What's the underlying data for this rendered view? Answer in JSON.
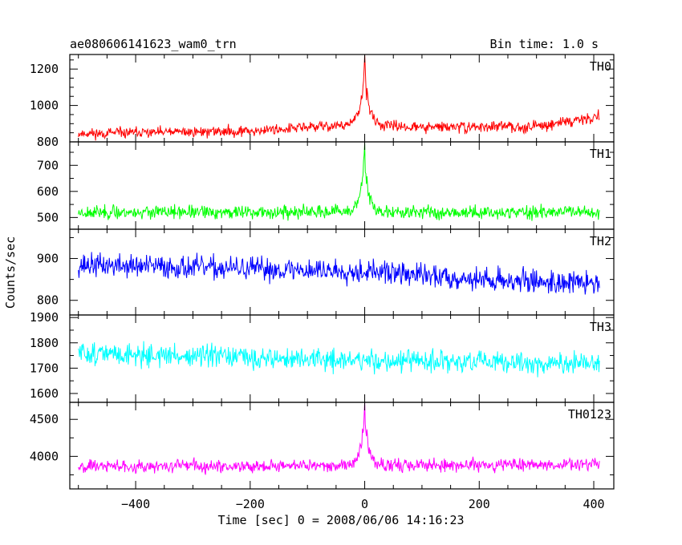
{
  "header": {
    "title": "ae080606141623_wam0_trn",
    "bin_time": "Bin time: 1.0 s"
  },
  "chart_data": {
    "type": "line",
    "xlabel": "Time [sec] 0 = 2008/06/06 14:16:23",
    "ylabel": "Counts/sec",
    "xlim": [
      -515,
      435
    ],
    "x_ticks": [
      -400,
      -200,
      0,
      200,
      400
    ],
    "x_tick_labels": [
      "−400",
      "−200",
      "0",
      "200",
      "400"
    ],
    "panels": [
      {
        "name": "TH0",
        "color": "#ff0000",
        "ylim": [
          800,
          1280
        ],
        "y_ticks": [
          800,
          1000,
          1200
        ],
        "y_minor": [
          850,
          900,
          950,
          1050,
          1100,
          1150,
          1250
        ],
        "y_tick_labels": [
          "800",
          "1000",
          "1200"
        ],
        "baseline": [
          [
            -500,
            845
          ],
          [
            -200,
            860
          ],
          [
            -100,
            880
          ],
          [
            -10,
            895
          ],
          [
            100,
            880
          ],
          [
            300,
            885
          ],
          [
            410,
            940
          ]
        ],
        "noise": 25,
        "burst_peak": 1280,
        "burst_width": 7,
        "seed": 11
      },
      {
        "name": "TH1",
        "color": "#00ff00",
        "ylim": [
          455,
          790
        ],
        "y_ticks": [
          500,
          600,
          700
        ],
        "y_minor": [
          550,
          650,
          750
        ],
        "y_tick_labels": [
          "500",
          "600",
          "700"
        ],
        "baseline": [
          [
            -500,
            520
          ],
          [
            0,
            520
          ],
          [
            410,
            520
          ]
        ],
        "noise": 22,
        "burst_peak": 785,
        "burst_width": 7,
        "seed": 23
      },
      {
        "name": "TH2",
        "color": "#0000ff",
        "ylim": [
          765,
          970
        ],
        "y_ticks": [
          800,
          900
        ],
        "y_minor": [
          850,
          950
        ],
        "y_tick_labels": [
          "800",
          "900"
        ],
        "baseline": [
          [
            -500,
            885
          ],
          [
            -200,
            875
          ],
          [
            0,
            870
          ],
          [
            200,
            850
          ],
          [
            410,
            840
          ]
        ],
        "noise": 24,
        "burst_peak": 0,
        "burst_width": 0,
        "seed": 37
      },
      {
        "name": "TH3",
        "color": "#00ffff",
        "ylim": [
          1565,
          1910
        ],
        "y_ticks": [
          1600,
          1700,
          1800,
          1900
        ],
        "y_minor": [
          1650,
          1750,
          1850
        ],
        "y_tick_labels": [
          "1600",
          "1700",
          "1800",
          "1900"
        ],
        "baseline": [
          [
            -500,
            1760
          ],
          [
            -200,
            1740
          ],
          [
            0,
            1730
          ],
          [
            410,
            1715
          ]
        ],
        "noise": 38,
        "burst_peak": 0,
        "burst_width": 0,
        "seed": 51
      },
      {
        "name": "TH0123",
        "color": "#ff00ff",
        "ylim": [
          3560,
          4730
        ],
        "y_ticks": [
          4000,
          4500
        ],
        "y_minor": [
          3750,
          4250
        ],
        "y_tick_labels": [
          "4000",
          "4500"
        ],
        "baseline": [
          [
            -500,
            3870
          ],
          [
            0,
            3875
          ],
          [
            410,
            3890
          ]
        ],
        "noise": 75,
        "burst_peak": 4730,
        "burst_width": 7,
        "seed": 67
      }
    ]
  }
}
